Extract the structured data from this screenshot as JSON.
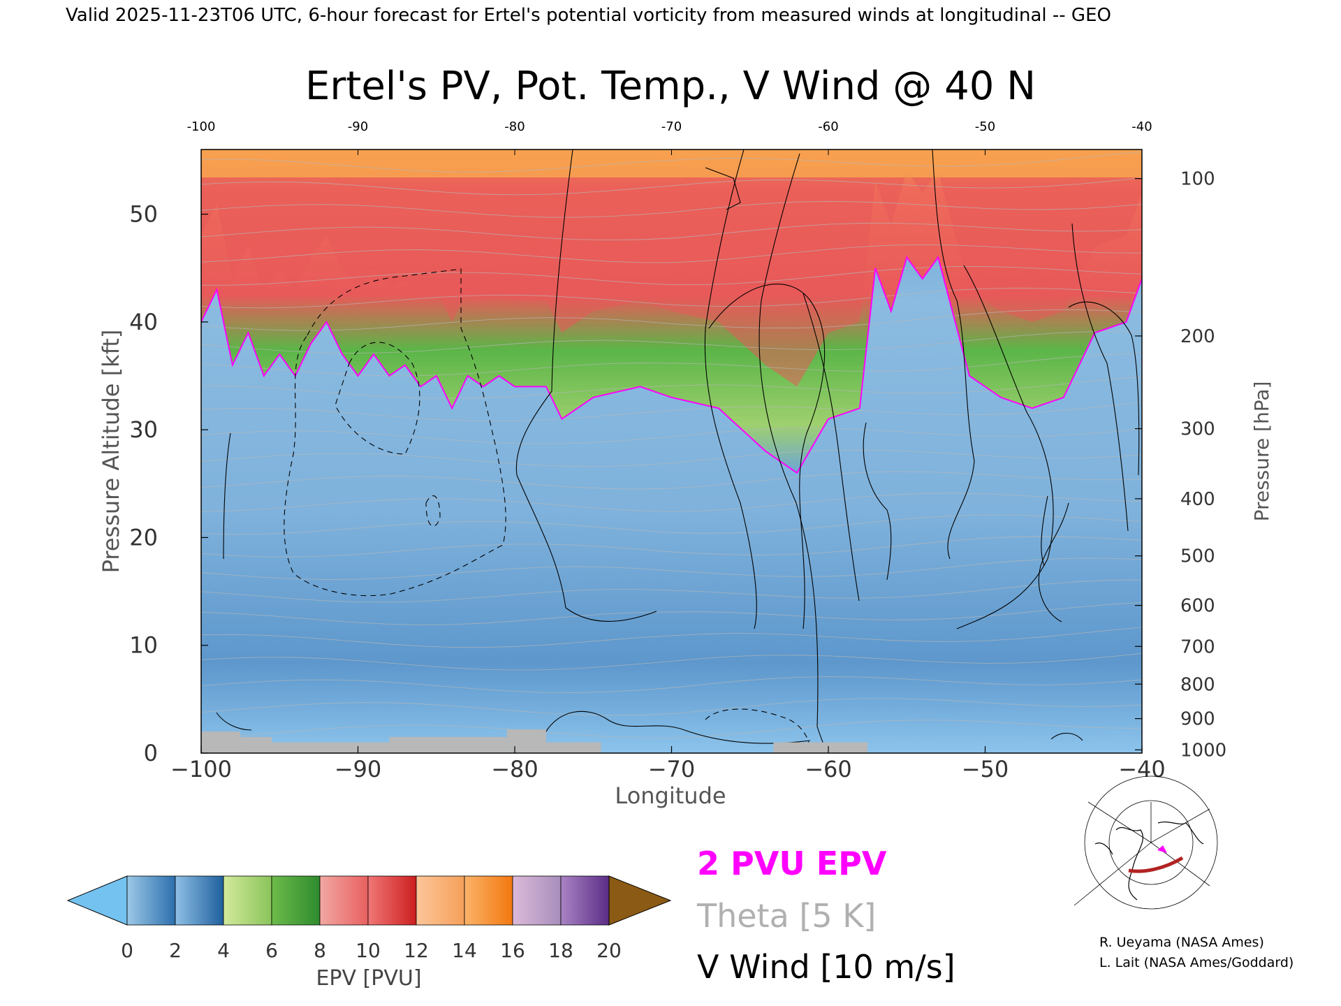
{
  "header": {
    "valid_line": "Valid 2025-11-23T06 UTC, 6-hour forecast for Ertel's potential vorticity from measured winds at longitudinal -- GEO"
  },
  "chart_data": {
    "type": "heatmap",
    "title": "Ertel's PV, Pot. Temp., V Wind @ 40 N",
    "xlabel": "Longitude",
    "ylabel": "Pressure Altitude [kft]",
    "ylabel_right": "Pressure [hPa]",
    "xlim": [
      -100,
      -40
    ],
    "ylim": [
      0,
      56
    ],
    "x_ticks": [
      -100,
      -90,
      -80,
      -70,
      -60,
      -50,
      -40
    ],
    "x_tick_labels": [
      "−100",
      "−90",
      "−80",
      "−70",
      "−60",
      "−50",
      "−40"
    ],
    "top_tick_labels": [
      "-100",
      "-90",
      "-80",
      "-70",
      "-60",
      "-50",
      "-40"
    ],
    "y_ticks": [
      0,
      10,
      20,
      30,
      40,
      50
    ],
    "y_tick_labels": [
      "0",
      "10",
      "20",
      "30",
      "40",
      "50"
    ],
    "pressure_ticks": [
      {
        "hpa": 1000,
        "kft": 0.3,
        "label": "1000"
      },
      {
        "hpa": 900,
        "kft": 3.2,
        "label": "900"
      },
      {
        "hpa": 800,
        "kft": 6.4,
        "label": "800"
      },
      {
        "hpa": 700,
        "kft": 9.9,
        "label": "700"
      },
      {
        "hpa": 600,
        "kft": 13.7,
        "label": "600"
      },
      {
        "hpa": 500,
        "kft": 18.3,
        "label": "500"
      },
      {
        "hpa": 400,
        "kft": 23.6,
        "label": "400"
      },
      {
        "hpa": 300,
        "kft": 30.1,
        "label": "300"
      },
      {
        "hpa": 200,
        "kft": 38.7,
        "label": "200"
      },
      {
        "hpa": 100,
        "kft": 53.3,
        "label": "100"
      }
    ],
    "tropopause_2pvu": [
      {
        "lon": -100,
        "kft": 40
      },
      {
        "lon": -99,
        "kft": 43
      },
      {
        "lon": -98,
        "kft": 36
      },
      {
        "lon": -97,
        "kft": 39
      },
      {
        "lon": -96,
        "kft": 35
      },
      {
        "lon": -95,
        "kft": 37
      },
      {
        "lon": -94,
        "kft": 35
      },
      {
        "lon": -93,
        "kft": 38
      },
      {
        "lon": -92,
        "kft": 40
      },
      {
        "lon": -91,
        "kft": 37
      },
      {
        "lon": -90,
        "kft": 35
      },
      {
        "lon": -89,
        "kft": 37
      },
      {
        "lon": -88,
        "kft": 35
      },
      {
        "lon": -87,
        "kft": 36
      },
      {
        "lon": -86,
        "kft": 34
      },
      {
        "lon": -85,
        "kft": 35
      },
      {
        "lon": -84,
        "kft": 32
      },
      {
        "lon": -83,
        "kft": 35
      },
      {
        "lon": -82,
        "kft": 34
      },
      {
        "lon": -81,
        "kft": 35
      },
      {
        "lon": -80,
        "kft": 34
      },
      {
        "lon": -78,
        "kft": 34
      },
      {
        "lon": -77,
        "kft": 31
      },
      {
        "lon": -75,
        "kft": 33
      },
      {
        "lon": -72,
        "kft": 34
      },
      {
        "lon": -70,
        "kft": 33
      },
      {
        "lon": -67,
        "kft": 32
      },
      {
        "lon": -64,
        "kft": 28
      },
      {
        "lon": -62,
        "kft": 26
      },
      {
        "lon": -60,
        "kft": 31
      },
      {
        "lon": -58,
        "kft": 32
      },
      {
        "lon": -57,
        "kft": 45
      },
      {
        "lon": -56,
        "kft": 41
      },
      {
        "lon": -55,
        "kft": 46
      },
      {
        "lon": -54,
        "kft": 44
      },
      {
        "lon": -53,
        "kft": 46
      },
      {
        "lon": -51,
        "kft": 35
      },
      {
        "lon": -49,
        "kft": 33
      },
      {
        "lon": -47,
        "kft": 32
      },
      {
        "lon": -45,
        "kft": 33
      },
      {
        "lon": -43,
        "kft": 39
      },
      {
        "lon": -41,
        "kft": 40
      },
      {
        "lon": -40,
        "kft": 44
      }
    ],
    "surface_mask": [
      {
        "lon_from": -100,
        "lon_to": -97.5,
        "kft": 2
      },
      {
        "lon_from": -97.5,
        "lon_to": -95.5,
        "kft": 1.5
      },
      {
        "lon_from": -95.5,
        "lon_to": -88,
        "kft": 1
      },
      {
        "lon_from": -88,
        "lon_to": -80.5,
        "kft": 1.5
      },
      {
        "lon_from": -80.5,
        "lon_to": -78,
        "kft": 2.2
      },
      {
        "lon_from": -78,
        "lon_to": -74.5,
        "kft": 1
      },
      {
        "lon_from": -63.5,
        "lon_to": -57.5,
        "kft": 1
      }
    ],
    "colorbar": {
      "label": "EPV [PVU]",
      "tick_labels": [
        "0",
        "2",
        "4",
        "6",
        "8",
        "10",
        "12",
        "14",
        "16",
        "18",
        "20"
      ],
      "under_color": "#74c2f0",
      "over_color": "#8b5a14",
      "segments": [
        [
          "#9cc8e6",
          "#2c6fae"
        ],
        [
          "#8fc0e6",
          "#1f5f9d"
        ],
        [
          "#d3ea9c",
          "#8ac45a"
        ],
        [
          "#6dbb4a",
          "#2e8b2e"
        ],
        [
          "#f2a8a3",
          "#e86060"
        ],
        [
          "#f07676",
          "#cc1f1f"
        ],
        [
          "#fcc69a",
          "#f5a05a"
        ],
        [
          "#fbb36a",
          "#f2780f"
        ],
        [
          "#dcbad8",
          "#a78ebc"
        ],
        [
          "#a983c4",
          "#5b2d86"
        ],
        [
          "#fbf4a5",
          "#d6b163"
        ],
        [
          "#c79a52",
          "#8b5a14"
        ]
      ]
    },
    "legend": [
      {
        "label": "2 PVU EPV",
        "color": "#ff00ff"
      },
      {
        "label": "Theta [5 K]",
        "color": "#b0b0b0"
      },
      {
        "label": "V Wind [10 m/s]",
        "color": "#000000"
      }
    ],
    "colors": {
      "stratosphere_top": "#f7a14f",
      "stratosphere_red": "#e85a5a",
      "green": "#5bb548",
      "troposphere": "#79b0dc",
      "tropopause_line": "#ff00ff",
      "surface": "#b8b8b8"
    }
  },
  "credits": {
    "line1": "R. Ueyama (NASA Ames)",
    "line2": "L. Lait (NASA Ames/Goddard)"
  },
  "inset_map": {
    "icon": "polar-map-icon"
  }
}
